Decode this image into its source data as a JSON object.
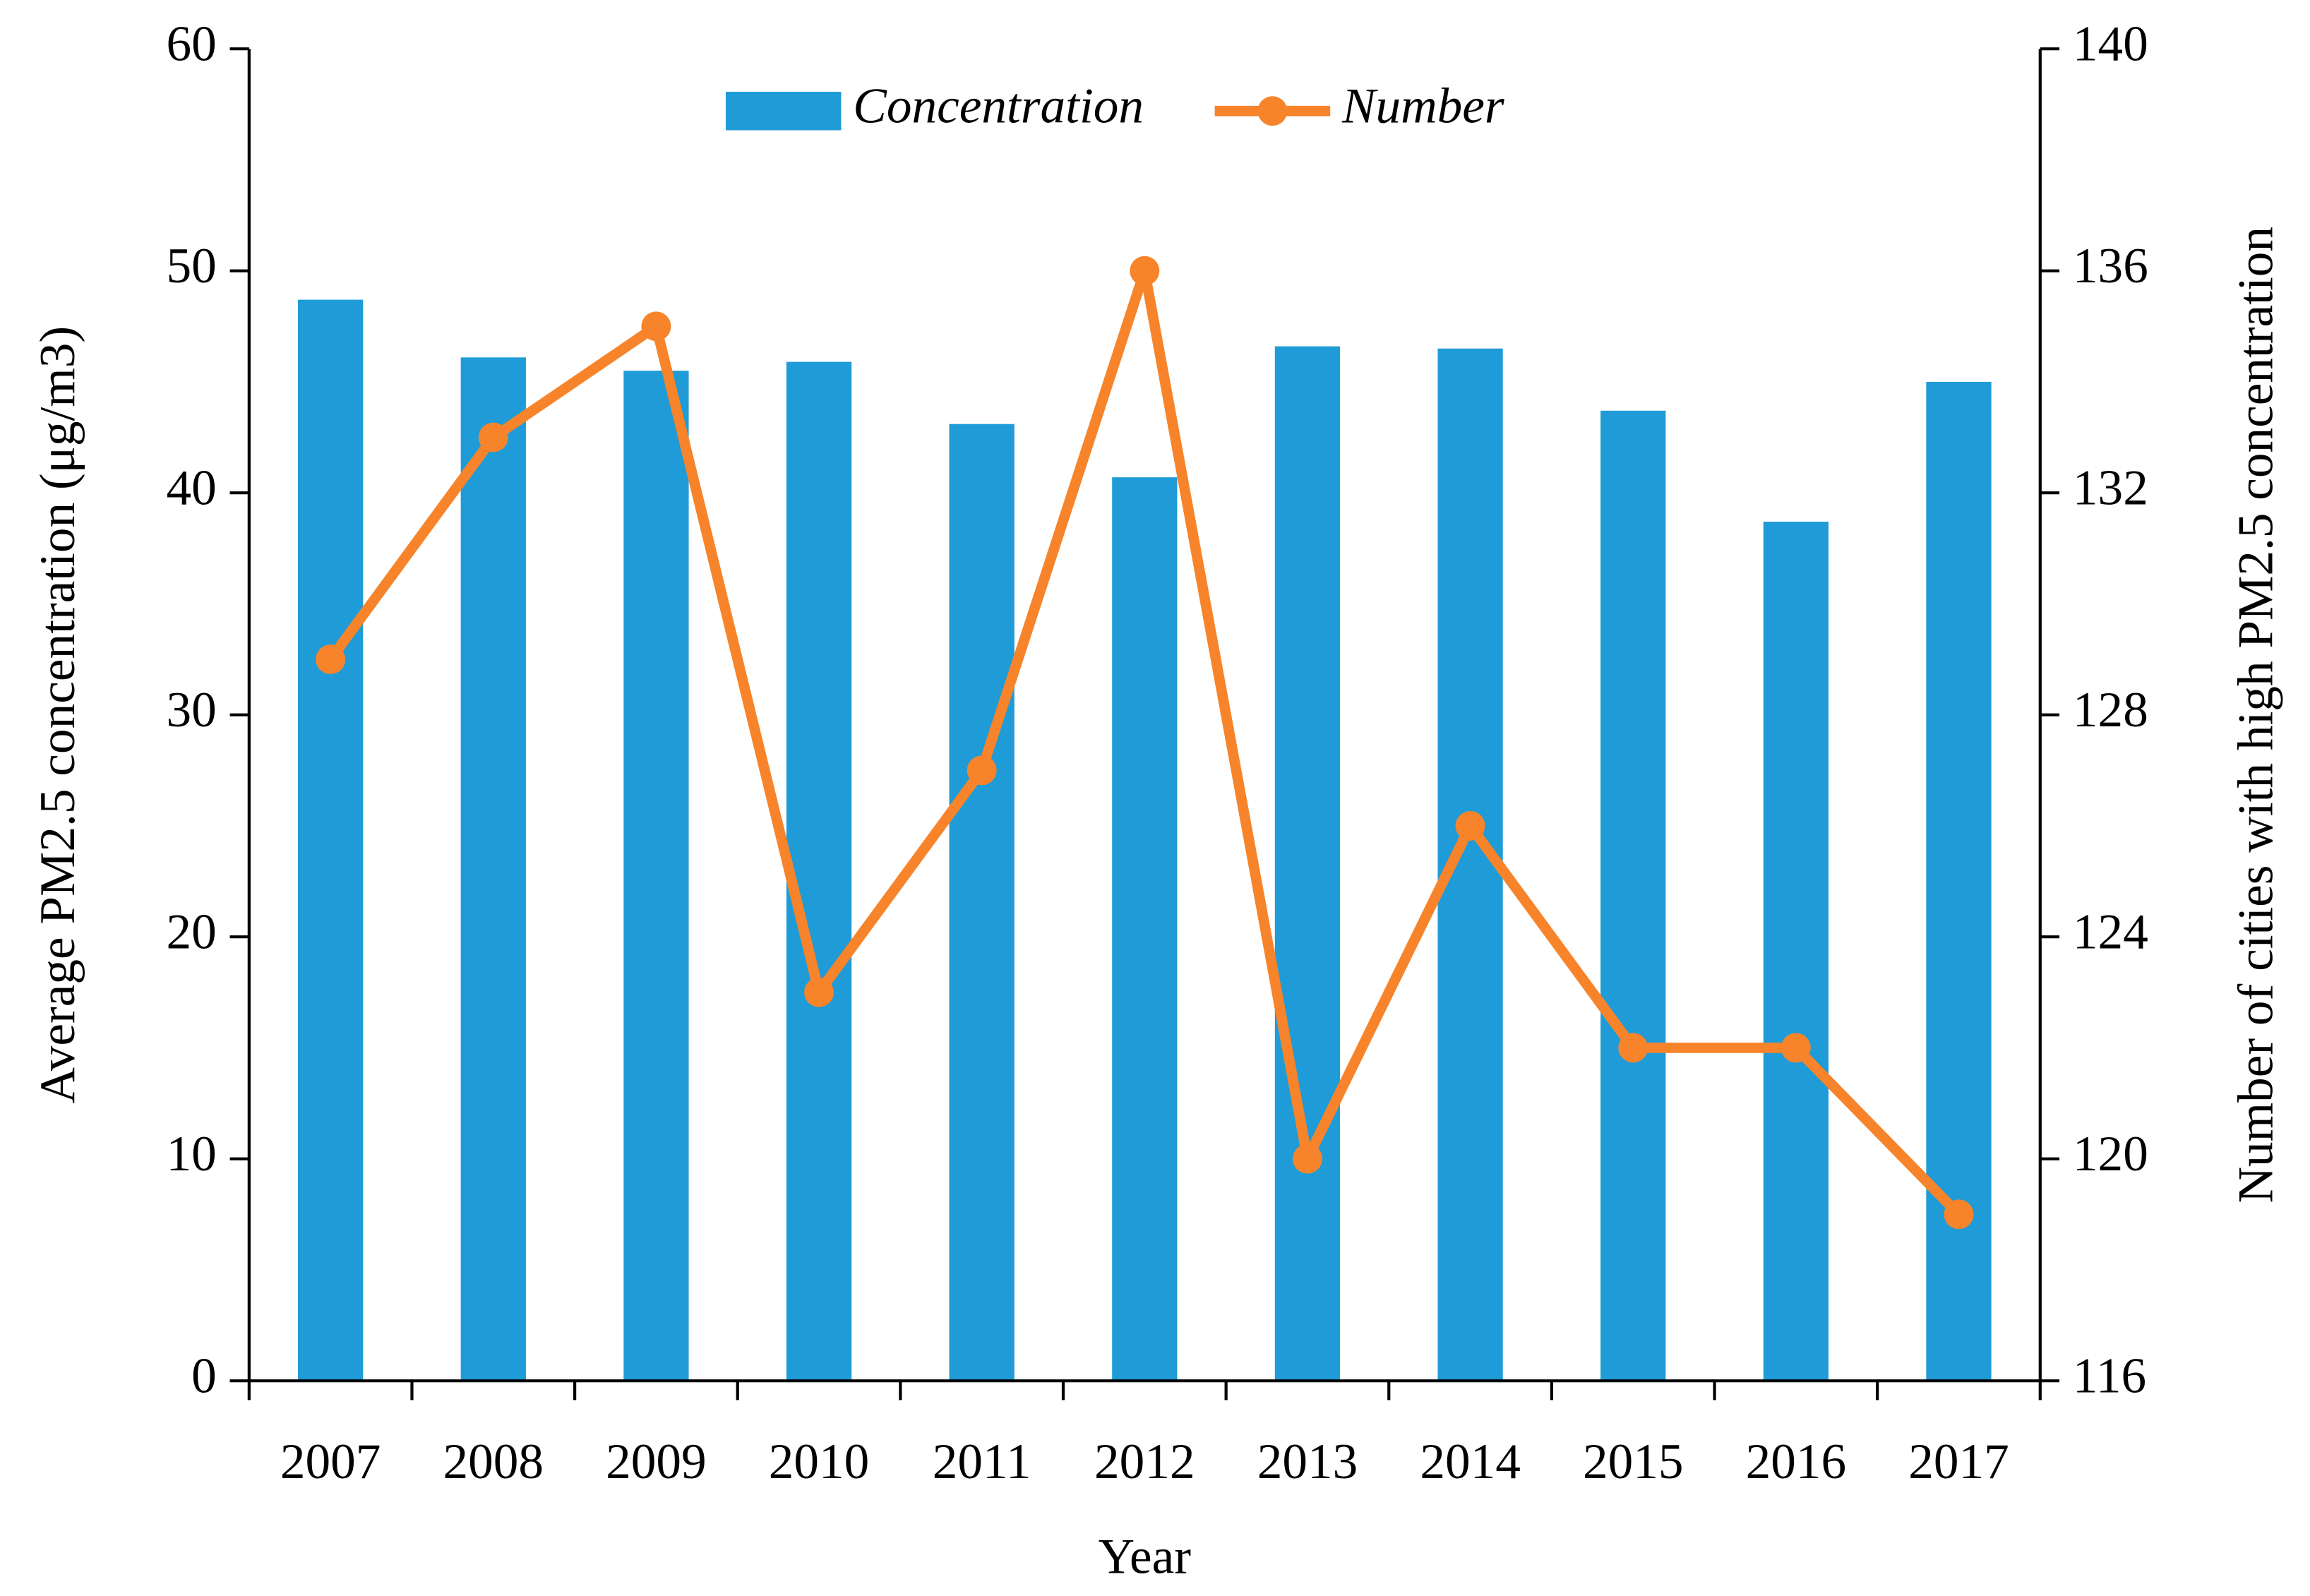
{
  "chart_data": {
    "type": "bar_line",
    "x_label": "Year",
    "y_label": "Average PM2.5 concentration (μg/m3)",
    "y2_label": "Number of cities with high PM2.5 concentration",
    "categories": [
      "2007",
      "2008",
      "2009",
      "2010",
      "2011",
      "2012",
      "2013",
      "2014",
      "2015",
      "2016",
      "2017"
    ],
    "series": [
      {
        "name": "Concentration",
        "type": "bar",
        "color": "#1f9bd7",
        "values": [
          48.7,
          46.1,
          45.5,
          45.9,
          43.1,
          40.7,
          46.6,
          46.5,
          43.7,
          38.7,
          45.0
        ]
      },
      {
        "name": "Number",
        "type": "line",
        "axis": "y2",
        "color": "#f7842a",
        "values": [
          129,
          133,
          135,
          123,
          127,
          136,
          120,
          126,
          122,
          122,
          119
        ]
      }
    ],
    "ylim": [
      0,
      60
    ],
    "yticks": [
      0,
      10,
      20,
      30,
      40,
      50,
      60
    ],
    "y2lim": [
      116,
      140
    ],
    "y2ticks": [
      116,
      120,
      124,
      128,
      132,
      136,
      140
    ],
    "legend": "top"
  }
}
